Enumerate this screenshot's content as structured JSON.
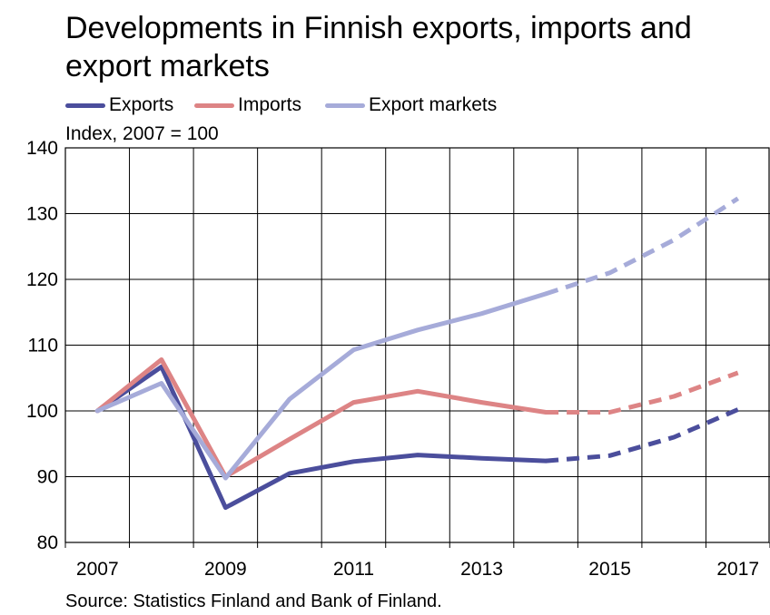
{
  "title": "Developments in Finnish exports, imports and export markets",
  "unit_label": "Index, 2007 = 100",
  "source": "Source: Statistics Finland and Bank of Finland.",
  "legend": [
    {
      "label": "Exports",
      "color": "#4b4e9c"
    },
    {
      "label": "Imports",
      "color": "#dd8485"
    },
    {
      "label": "Export markets",
      "color": "#a6abd9"
    }
  ],
  "chart_data": {
    "type": "line",
    "title": "Developments in Finnish exports, imports and export markets",
    "ylabel": "Index, 2007 = 100",
    "xlim": [
      2007,
      2018
    ],
    "ylim": [
      80,
      140
    ],
    "y_ticks": [
      80,
      90,
      100,
      110,
      120,
      130,
      140
    ],
    "x_tick_labels": [
      "2007",
      "2009",
      "2011",
      "2013",
      "2015",
      "2017"
    ],
    "x_tick_values": [
      2007,
      2009,
      2011,
      2013,
      2015,
      2017
    ],
    "grid": true,
    "legend_position": "top-left",
    "forecast_from": 2014,
    "series": [
      {
        "name": "Exports",
        "color": "#4b4e9c",
        "x": [
          2007,
          2008,
          2009,
          2010,
          2011,
          2012,
          2013,
          2014,
          2015,
          2016,
          2017
        ],
        "values": [
          100,
          106.7,
          85.3,
          90.5,
          92.3,
          93.3,
          92.8,
          92.4,
          93.2,
          96.0,
          100.2
        ]
      },
      {
        "name": "Imports",
        "color": "#dd8485",
        "x": [
          2007,
          2008,
          2009,
          2010,
          2011,
          2012,
          2013,
          2014,
          2015,
          2016,
          2017
        ],
        "values": [
          100,
          107.8,
          90.0,
          95.7,
          101.3,
          103.0,
          101.3,
          99.8,
          99.8,
          102.2,
          105.8
        ]
      },
      {
        "name": "Export markets",
        "color": "#a6abd9",
        "x": [
          2007,
          2008,
          2009,
          2010,
          2011,
          2012,
          2013,
          2014,
          2015,
          2016,
          2017
        ],
        "values": [
          100,
          104.2,
          89.8,
          101.8,
          109.3,
          112.3,
          114.8,
          117.8,
          121.0,
          126.0,
          132.3
        ]
      }
    ]
  }
}
